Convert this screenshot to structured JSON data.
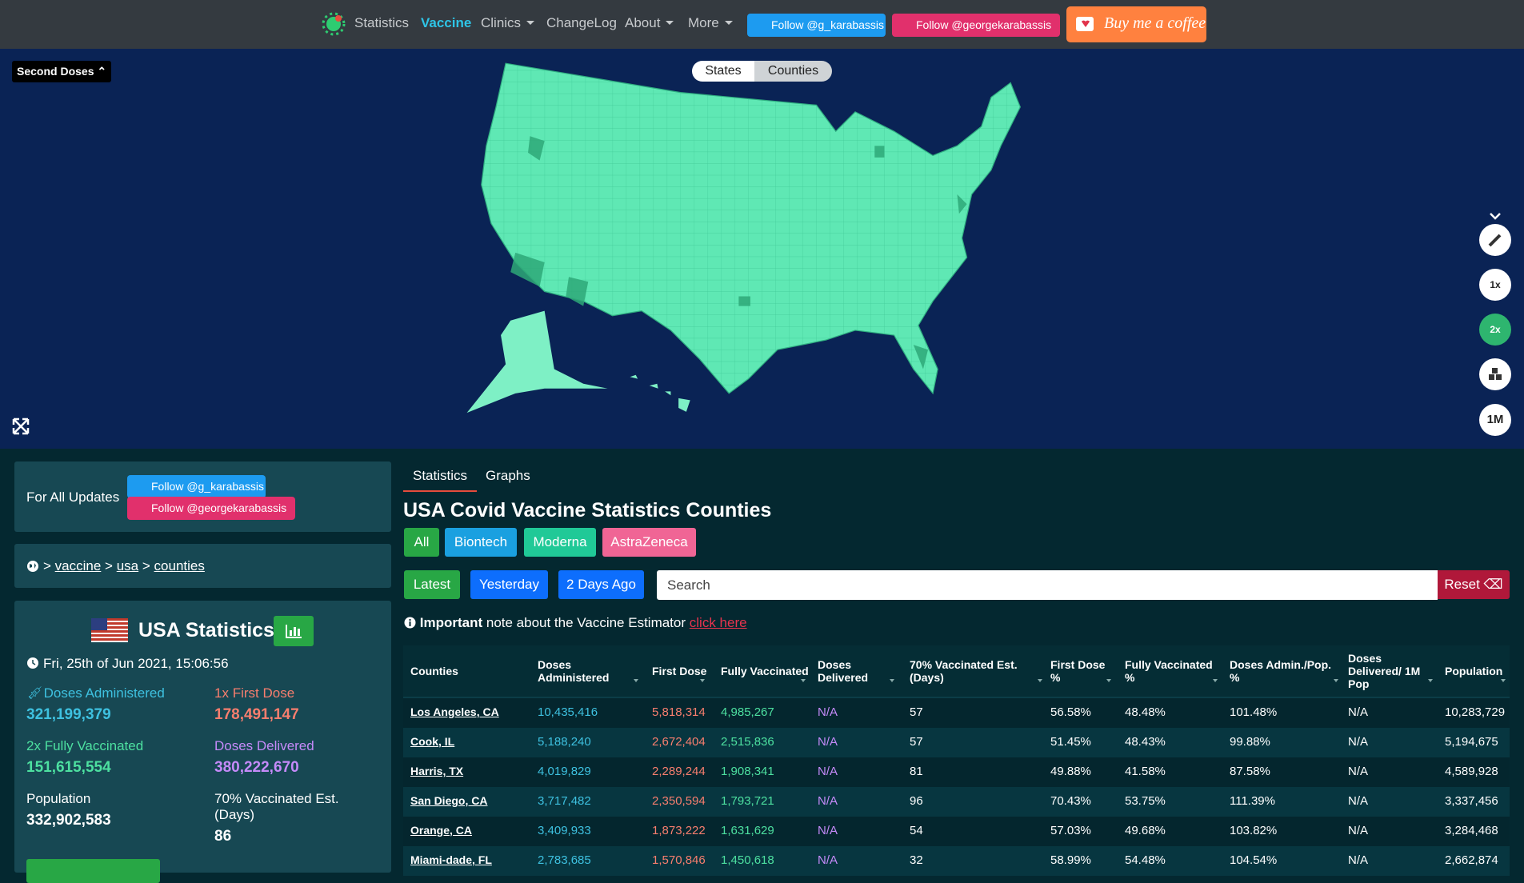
{
  "nav": {
    "items": [
      "Statistics",
      "Vaccine",
      "Clinics",
      "ChangeLog",
      "About",
      "More"
    ],
    "twitter": "Follow @g_karabassis",
    "instagram": "Follow @georgekarabassis",
    "coffee": "Buy me a coffee"
  },
  "map": {
    "dropdown": "Second Doses",
    "toggle": [
      "States",
      "Counties"
    ],
    "buttons": [
      "1x",
      "2x",
      "1M"
    ]
  },
  "updates": {
    "label": "For All Updates",
    "twitter": "Follow @g_karabassis",
    "instagram": "Follow @georgekarabassis"
  },
  "breadcrumb": {
    "separator": ">",
    "links": [
      "vaccine",
      "usa",
      "counties"
    ]
  },
  "stats": {
    "title": "USA Statistics",
    "date": "Fri, 25th of Jun 2021, 15:06:56",
    "items": [
      {
        "label": "Doses Administered",
        "value": "321,199,379"
      },
      {
        "prefix": "1x",
        "label": "First Dose",
        "value": "178,491,147"
      },
      {
        "prefix": "2x",
        "label": "Fully Vaccinated",
        "value": "151,615,554"
      },
      {
        "label": "Doses Delivered",
        "value": "380,222,670"
      },
      {
        "label": "Population",
        "value": "332,902,583"
      },
      {
        "label": "70% Vaccinated Est. (Days)",
        "value": "86"
      }
    ]
  },
  "tabs": [
    "Statistics",
    "Graphs"
  ],
  "heading": "USA Covid Vaccine Statistics Counties",
  "filters": [
    "All",
    "Biontech",
    "Moderna",
    "AstraZeneca"
  ],
  "days": [
    "Latest",
    "Yesterday",
    "2 Days Ago"
  ],
  "search": "Search",
  "reset": "Reset",
  "note": {
    "strong": "Important",
    "text": "note about the Vaccine Estimator",
    "link": "click here"
  },
  "table": {
    "headers": [
      "Counties",
      "Doses Administered",
      "First Dose",
      "Fully Vaccinated",
      "Doses Delivered",
      "70% Vaccinated Est. (Days)",
      "First Dose %",
      "Fully Vaccinated %",
      "Doses Admin./Pop. %",
      "Doses Delivered/ 1M Pop",
      "Population"
    ],
    "rows": [
      [
        "Los Angeles, CA",
        "10,435,416",
        "5,818,314",
        "4,985,267",
        "N/A",
        "57",
        "56.58%",
        "48.48%",
        "101.48%",
        "N/A",
        "10,283,729"
      ],
      [
        "Cook, IL",
        "5,188,240",
        "2,672,404",
        "2,515,836",
        "N/A",
        "57",
        "51.45%",
        "48.43%",
        "99.88%",
        "N/A",
        "5,194,675"
      ],
      [
        "Harris, TX",
        "4,019,829",
        "2,289,244",
        "1,908,341",
        "N/A",
        "81",
        "49.88%",
        "41.58%",
        "87.58%",
        "N/A",
        "4,589,928"
      ],
      [
        "San Diego, CA",
        "3,717,482",
        "2,350,594",
        "1,793,721",
        "N/A",
        "96",
        "70.43%",
        "53.75%",
        "111.39%",
        "N/A",
        "3,337,456"
      ],
      [
        "Orange, CA",
        "3,409,933",
        "1,873,222",
        "1,631,629",
        "N/A",
        "54",
        "57.03%",
        "49.68%",
        "103.82%",
        "N/A",
        "3,284,468"
      ],
      [
        "Miami-dade, FL",
        "2,783,685",
        "1,570,846",
        "1,450,618",
        "N/A",
        "32",
        "58.99%",
        "54.48%",
        "104.54%",
        "N/A",
        "2,662,874"
      ]
    ]
  }
}
